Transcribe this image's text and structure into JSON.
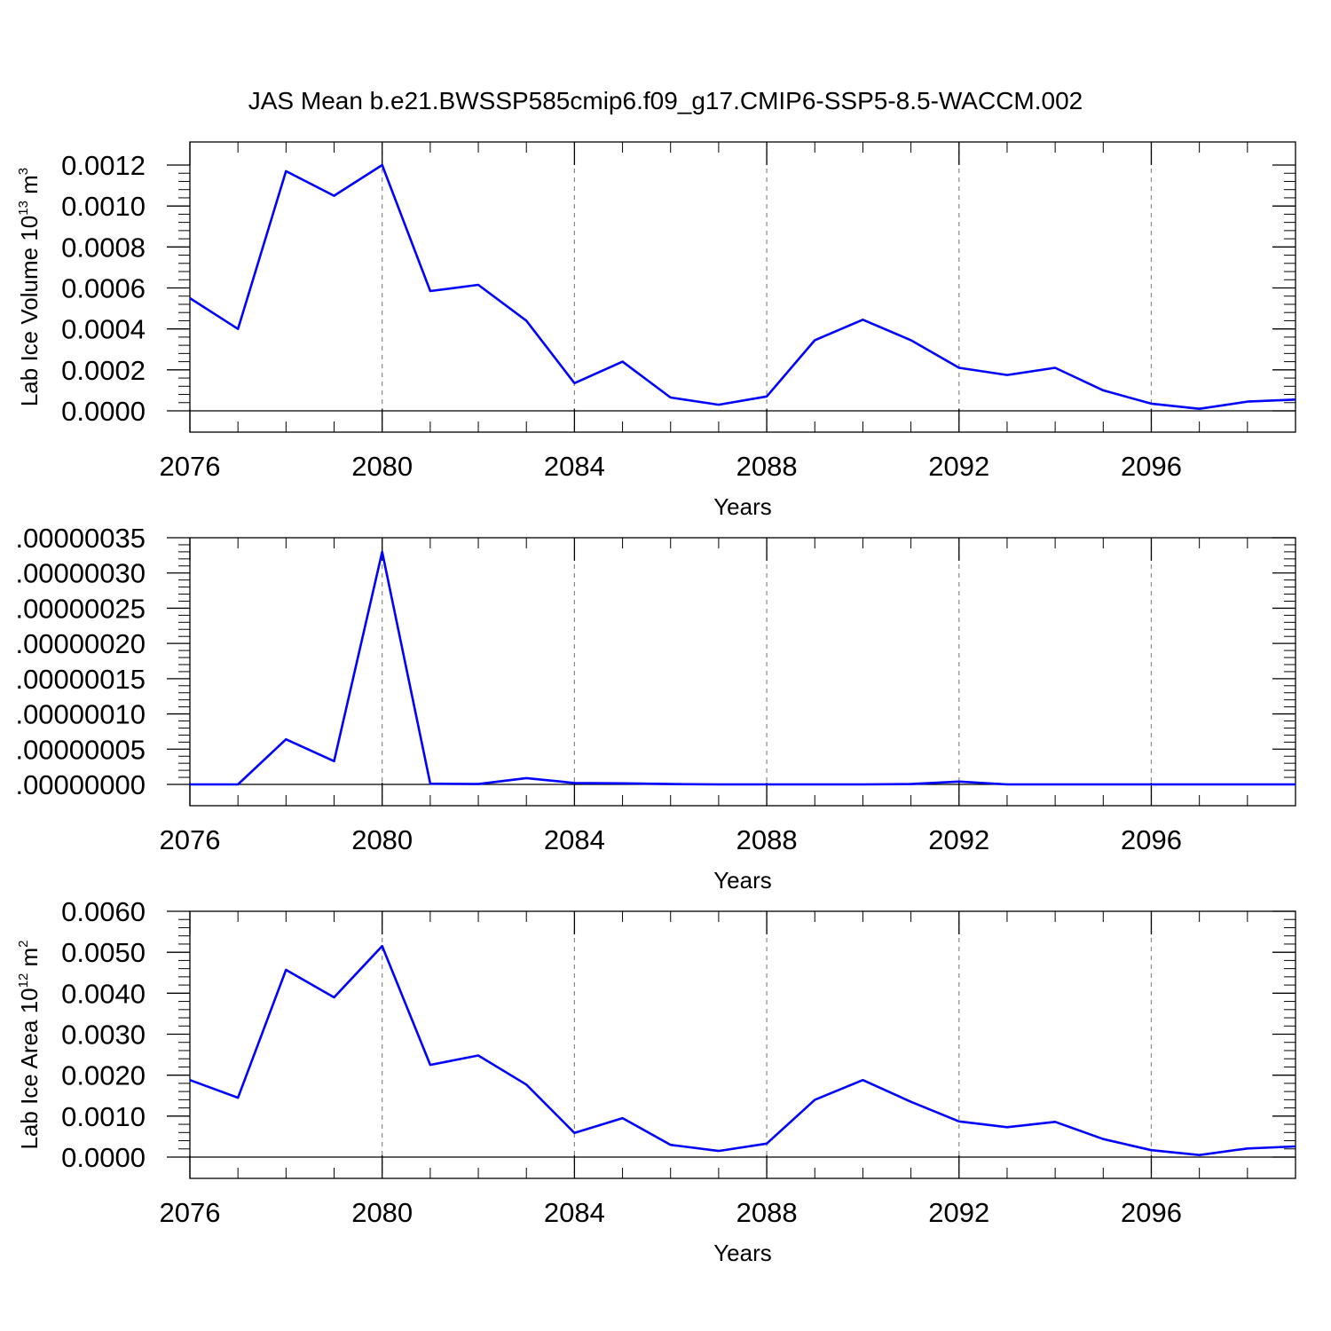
{
  "title": "JAS Mean b.e21.BWSSP585cmip6.f09_g17.CMIP6-SSP5-8.5-WACCM.002",
  "chart_data": [
    {
      "type": "line",
      "xlabel": "Years",
      "ylabel": "Lab Ice Volume 10",
      "ylabel_exp": "13",
      "ylabel_unit": " m",
      "ylabel_unit_exp": "3",
      "xlim": [
        2076,
        2099
      ],
      "ylim": [
        0,
        0.0012
      ],
      "xticks": [
        2076,
        2080,
        2084,
        2088,
        2092,
        2096
      ],
      "xtick_labels": [
        "2076",
        "2080",
        "2084",
        "2088",
        "2092",
        "2096"
      ],
      "yticks": [
        0,
        0.0002,
        0.0004,
        0.0006,
        0.0008,
        0.001,
        0.0012
      ],
      "ytick_labels": [
        "0.0000",
        "0.0002",
        "0.0004",
        "0.0006",
        "0.0008",
        "0.0010",
        "0.0012"
      ],
      "grid": "vertical dashed at major x ticks",
      "series": [
        {
          "color": "#0000ff",
          "x": [
            2076,
            2077,
            2078,
            2079,
            2080,
            2081,
            2082,
            2083,
            2084,
            2085,
            2086,
            2087,
            2088,
            2089,
            2090,
            2091,
            2092,
            2093,
            2094,
            2095,
            2096,
            2097,
            2098,
            2099
          ],
          "values": [
            0.00055,
            0.0004,
            0.00117,
            0.00105,
            0.0012,
            0.000585,
            0.000615,
            0.00044,
            0.000135,
            0.00024,
            6.5e-05,
            3e-05,
            7e-05,
            0.000345,
            0.000445,
            0.000345,
            0.00021,
            0.000175,
            0.00021,
            0.0001,
            3.5e-05,
            1e-05,
            4.5e-05,
            5.5e-05
          ]
        }
      ]
    },
    {
      "type": "line",
      "xlabel": "Years",
      "ylabel": "",
      "xlim": [
        2076,
        2099
      ],
      "ylim": [
        0,
        3.5e-07
      ],
      "xticks": [
        2076,
        2080,
        2084,
        2088,
        2092,
        2096
      ],
      "xtick_labels": [
        "2076",
        "2080",
        "2084",
        "2088",
        "2092",
        "2096"
      ],
      "yticks": [
        0,
        5e-08,
        1e-07,
        1.5e-07,
        2e-07,
        2.5e-07,
        3e-07,
        3.5e-07
      ],
      "ytick_labels": [
        ".00000000",
        ".00000005",
        ".00000010",
        ".00000015",
        ".00000020",
        ".00000025",
        ".00000030",
        ".00000035"
      ],
      "grid": "vertical dashed at major x ticks",
      "series": [
        {
          "color": "#0000ff",
          "x": [
            2076,
            2077,
            2078,
            2079,
            2080,
            2081,
            2082,
            2083,
            2084,
            2085,
            2086,
            2087,
            2088,
            2089,
            2090,
            2091,
            2092,
            2093,
            2094,
            2095,
            2096,
            2097,
            2098,
            2099
          ],
          "values": [
            0,
            0,
            6.4e-08,
            3.3e-08,
            3.3e-07,
            1e-09,
            5e-10,
            9e-09,
            2e-09,
            1.5e-09,
            5e-10,
            0,
            0,
            0,
            0,
            5e-10,
            4e-09,
            0,
            0,
            0,
            0,
            0,
            0,
            0
          ]
        }
      ]
    },
    {
      "type": "line",
      "xlabel": "Years",
      "ylabel": "Lab Ice Area 10",
      "ylabel_exp": "12",
      "ylabel_unit": " m",
      "ylabel_unit_exp": "2",
      "xlim": [
        2076,
        2099
      ],
      "ylim": [
        0,
        0.006
      ],
      "xticks": [
        2076,
        2080,
        2084,
        2088,
        2092,
        2096
      ],
      "xtick_labels": [
        "2076",
        "2080",
        "2084",
        "2088",
        "2092",
        "2096"
      ],
      "yticks": [
        0,
        0.001,
        0.002,
        0.003,
        0.004,
        0.005,
        0.006
      ],
      "ytick_labels": [
        "0.0000",
        "0.0010",
        "0.0020",
        "0.0030",
        "0.0040",
        "0.0050",
        "0.0060"
      ],
      "grid": "vertical dashed at major x ticks",
      "series": [
        {
          "color": "#0000ff",
          "x": [
            2076,
            2077,
            2078,
            2079,
            2080,
            2081,
            2082,
            2083,
            2084,
            2085,
            2086,
            2087,
            2088,
            2089,
            2090,
            2091,
            2092,
            2093,
            2094,
            2095,
            2096,
            2097,
            2098,
            2099
          ],
          "values": [
            0.00188,
            0.00145,
            0.00457,
            0.0039,
            0.00515,
            0.00225,
            0.00248,
            0.00177,
            0.00059,
            0.00095,
            0.0003,
            0.00015,
            0.00033,
            0.0014,
            0.00188,
            0.00135,
            0.00087,
            0.00073,
            0.00086,
            0.00044,
            0.00017,
            5e-05,
            0.00021,
            0.00026
          ]
        }
      ]
    }
  ]
}
